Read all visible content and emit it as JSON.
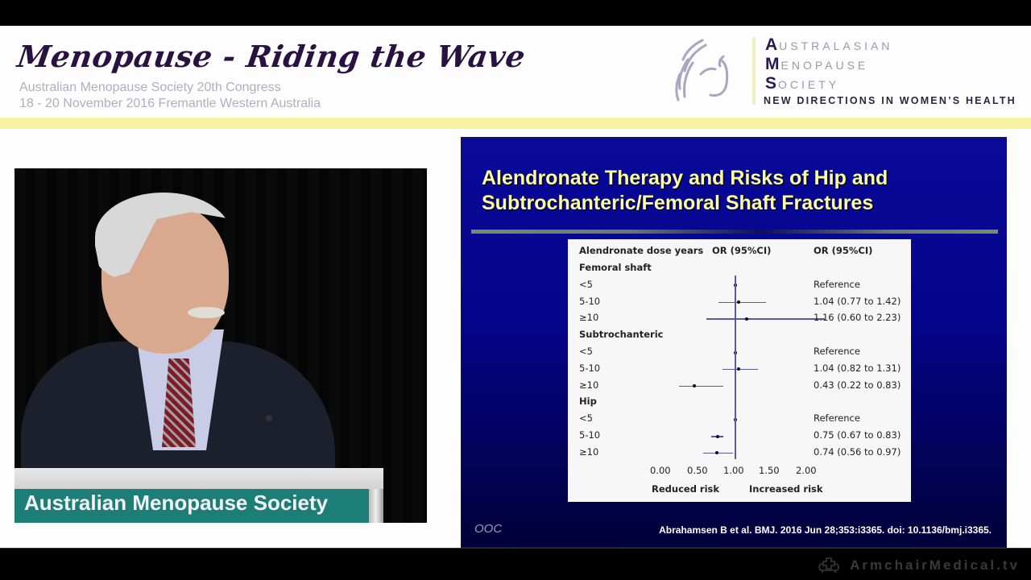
{
  "header": {
    "event_title": "Menopause - Riding the Wave",
    "subtitle_line1": "Australian Menopause Society 20th Congress",
    "subtitle_line2": "18 - 20 November 2016 Fremantle Western Australia",
    "logo": {
      "icon": "ams-swirl-icon",
      "line1_initial": "A",
      "line1_rest": "USTRALASIAN",
      "line2_initial": "M",
      "line2_rest": "ENOPAUSE",
      "line3_initial": "S",
      "line3_rest": "OCIETY",
      "tagline": "NEW DIRECTIONS IN WOMEN’S HEALTH"
    },
    "accent_color": "#f6f2a0"
  },
  "video": {
    "podium_sign_text": "Australian Menopause Society"
  },
  "slide": {
    "title_line1": "Alendronate Therapy and Risks of Hip and",
    "title_line2": "Subtrochanteric/Femoral Shaft Fractures",
    "footer_left": "OOC",
    "citation": "Abrahamsen B et al. BMJ. 2016 Jun 28;353:i3365. doi: 10.1136/bmj.i3365.",
    "title_color": "#fcfca0",
    "background_color": "#04048a"
  },
  "chart_data": {
    "type": "forest",
    "title": "Alendronate Therapy and Risks of Hip and Subtrochanteric/Femoral Shaft Fractures",
    "column_headers": [
      "Alendronate dose years",
      "OR (95%CI)",
      "OR (95%CI)"
    ],
    "xlim": [
      0,
      2
    ],
    "xticks": [
      "0.00",
      "0.50",
      "1.00",
      "1.50",
      "2.00"
    ],
    "reference_line": 1.0,
    "xlabel_left": "Reduced risk",
    "xlabel_right": "Increased risk",
    "groups": [
      {
        "name": "Femoral shaft",
        "rows": [
          {
            "label": "<5",
            "or": 1.0,
            "lo": null,
            "hi": null,
            "text": "Reference"
          },
          {
            "label": "5-10",
            "or": 1.04,
            "lo": 0.77,
            "hi": 1.42,
            "text": "1.04 (0.77 to 1.42)"
          },
          {
            "label": "≥10",
            "or": 1.16,
            "lo": 0.6,
            "hi": 2.23,
            "text": "1.16 (0.60 to 2.23)"
          }
        ]
      },
      {
        "name": "Subtrochanteric",
        "rows": [
          {
            "label": "<5",
            "or": 1.0,
            "lo": null,
            "hi": null,
            "text": "Reference"
          },
          {
            "label": "5-10",
            "or": 1.04,
            "lo": 0.82,
            "hi": 1.31,
            "text": "1.04 (0.82 to 1.31)"
          },
          {
            "label": "≥10",
            "or": 0.43,
            "lo": 0.22,
            "hi": 0.83,
            "text": "0.43 (0.22 to 0.83)"
          }
        ]
      },
      {
        "name": "Hip",
        "rows": [
          {
            "label": "<5",
            "or": 1.0,
            "lo": null,
            "hi": null,
            "text": "Reference"
          },
          {
            "label": "5-10",
            "or": 0.75,
            "lo": 0.67,
            "hi": 0.83,
            "text": "0.75 (0.67 to 0.83)"
          },
          {
            "label": "≥10",
            "or": 0.74,
            "lo": 0.56,
            "hi": 0.97,
            "text": "0.74 (0.56 to 0.97)"
          }
        ]
      }
    ]
  },
  "footer": {
    "brand_icon": "armchair-cross-icon",
    "brand_text": "ArmchairMedical.tv"
  }
}
